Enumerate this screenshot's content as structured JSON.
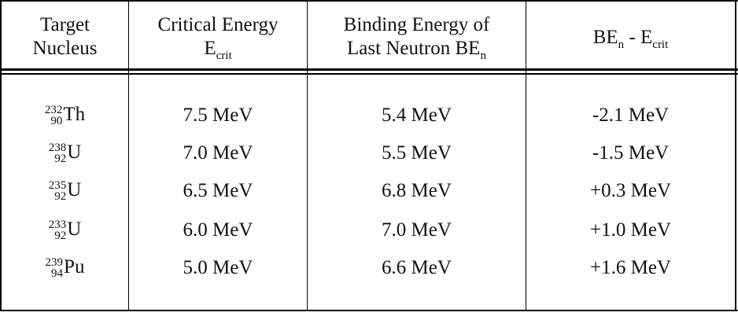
{
  "table": {
    "header": [
      {
        "line1": "Target",
        "line2": "Nucleus"
      },
      {
        "line1": "Critical Energy",
        "symbol": "E",
        "symbol_sub": "crit"
      },
      {
        "line1": "Binding Energy of",
        "line2": "Last Neutron BE",
        "line2_sub": "n"
      },
      {
        "symbol": "BE",
        "symbol_sub": "n",
        "operator": " - E",
        "operator_sub": "crit"
      }
    ],
    "rows": [
      [
        {
          "mass": "232",
          "atomic": "90",
          "symbol": "Th"
        },
        "7.5 MeV",
        "5.4 MeV",
        "-2.1 MeV"
      ],
      [
        {
          "mass": "238",
          "atomic": "92",
          "symbol": "U"
        },
        "7.0 MeV",
        "5.5 MeV",
        "-1.5 MeV"
      ],
      [
        {
          "mass": "235",
          "atomic": "92",
          "symbol": "U"
        },
        "6.5 MeV",
        "6.8 MeV",
        "+0.3 MeV"
      ],
      [
        {
          "mass": "233",
          "atomic": "92",
          "symbol": "U"
        },
        "6.0 MeV",
        "7.0 MeV",
        "+1.0 MeV"
      ],
      [
        {
          "mass": "239",
          "atomic": "94",
          "symbol": "Pu"
        },
        "5.0 MeV",
        "6.6 MeV",
        "+1.6 MeV"
      ]
    ]
  }
}
